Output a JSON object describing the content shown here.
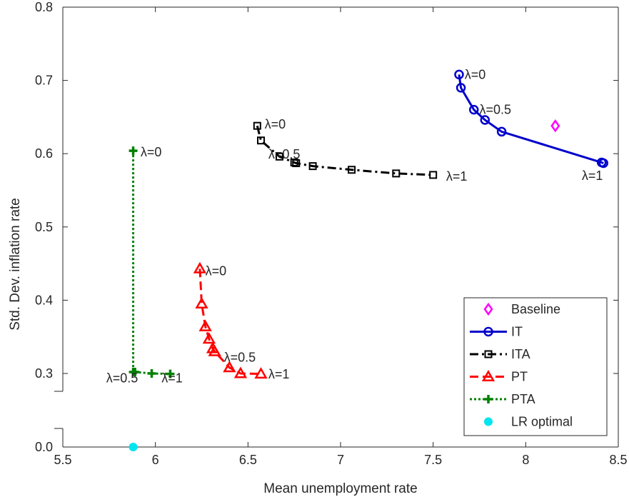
{
  "chart_data": {
    "type": "scatter",
    "xlabel": "Mean unemployment rate",
    "ylabel": "Std. Dev. inflation rate",
    "xlim": [
      5.5,
      8.5
    ],
    "ylim": [
      0.0,
      0.8
    ],
    "y_axis_break": true,
    "xticks": [
      "5.5",
      "6",
      "6.5",
      "7",
      "7.5",
      "8",
      "8.5"
    ],
    "yticks": [
      {
        "label": "0.0",
        "value": 0.0
      },
      {
        "label": "0.3",
        "value": 0.3
      },
      {
        "label": "0.4",
        "value": 0.4
      },
      {
        "label": "0.5",
        "value": 0.5
      },
      {
        "label": "0.6",
        "value": 0.6
      },
      {
        "label": "0.7",
        "value": 0.7
      },
      {
        "label": "0.8",
        "value": 0.8
      }
    ],
    "grid": false,
    "legend_position": "bottom-right",
    "series": [
      {
        "name": "Baseline",
        "color": "#ff00ff",
        "line": "none",
        "marker": "diamond",
        "points": [
          [
            8.16,
            0.638
          ]
        ]
      },
      {
        "name": "IT",
        "color": "#0000cc",
        "line": "solid",
        "marker": "circle",
        "points": [
          [
            7.64,
            0.708
          ],
          [
            7.65,
            0.69
          ],
          [
            7.72,
            0.66
          ],
          [
            7.78,
            0.646
          ],
          [
            7.87,
            0.63
          ],
          [
            8.41,
            0.588
          ],
          [
            8.42,
            0.587
          ]
        ]
      },
      {
        "name": "ITA",
        "color": "#000000",
        "line": "dashdot",
        "marker": "square",
        "points": [
          [
            6.55,
            0.638
          ],
          [
            6.57,
            0.618
          ],
          [
            6.67,
            0.596
          ],
          [
            6.75,
            0.588
          ],
          [
            6.76,
            0.587
          ],
          [
            6.85,
            0.583
          ],
          [
            7.06,
            0.578
          ],
          [
            7.3,
            0.573
          ],
          [
            7.5,
            0.571
          ]
        ]
      },
      {
        "name": "PT",
        "color": "#ff0000",
        "line": "dashed",
        "marker": "triangle",
        "points": [
          [
            6.24,
            0.443
          ],
          [
            6.25,
            0.395
          ],
          [
            6.27,
            0.364
          ],
          [
            6.29,
            0.347
          ],
          [
            6.31,
            0.334
          ],
          [
            6.32,
            0.33
          ],
          [
            6.4,
            0.308
          ],
          [
            6.46,
            0.3
          ],
          [
            6.57,
            0.298
          ]
        ]
      },
      {
        "name": "PTA",
        "color": "#008000",
        "line": "dotted",
        "marker": "plus",
        "points": [
          [
            5.88,
            0.604
          ],
          [
            5.88,
            0.302
          ],
          [
            5.89,
            0.302
          ],
          [
            5.98,
            0.3
          ],
          [
            6.08,
            0.298
          ]
        ]
      },
      {
        "name": "LR optimal",
        "color": "#00e5ee",
        "line": "none",
        "marker": "dot",
        "points": [
          [
            5.88,
            0.0
          ]
        ]
      }
    ],
    "annotations": [
      {
        "text": "λ=0",
        "x": 7.67,
        "y": 0.708,
        "anchor": "start"
      },
      {
        "text": "λ=0.5",
        "x": 7.75,
        "y": 0.66,
        "anchor": "start"
      },
      {
        "text": "λ=1",
        "x": 8.36,
        "y": 0.57,
        "anchor": "middle"
      },
      {
        "text": "λ=0",
        "x": 6.59,
        "y": 0.64,
        "anchor": "start"
      },
      {
        "text": "λ=0.5",
        "x": 6.61,
        "y": 0.599,
        "anchor": "start"
      },
      {
        "text": "λ=1",
        "x": 7.57,
        "y": 0.569,
        "anchor": "start"
      },
      {
        "text": "λ=0",
        "x": 5.92,
        "y": 0.602,
        "anchor": "start"
      },
      {
        "text": "λ=0.5",
        "x": 5.82,
        "y": 0.279,
        "anchor": "middle"
      },
      {
        "text": "λ=1",
        "x": 6.09,
        "y": 0.279,
        "anchor": "middle"
      },
      {
        "text": "λ=0",
        "x": 6.27,
        "y": 0.44,
        "anchor": "start"
      },
      {
        "text": "λ=0.5",
        "x": 6.37,
        "y": 0.322,
        "anchor": "start"
      },
      {
        "text": "λ=1",
        "x": 6.61,
        "y": 0.296,
        "anchor": "start"
      }
    ]
  }
}
